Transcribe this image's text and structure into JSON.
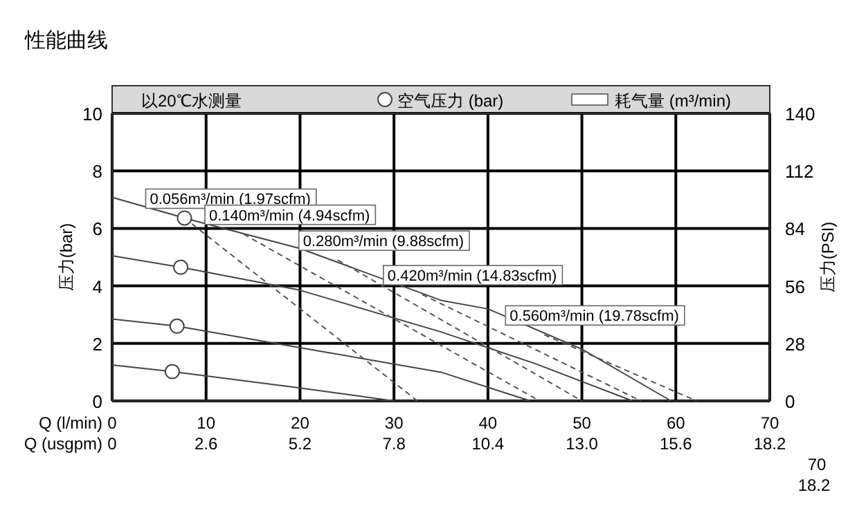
{
  "chart_data": {
    "type": "line",
    "title": "性能曲线",
    "ylabel": "压力(bar)",
    "y2label": "压力(PSI)",
    "xlabel": "Q (l/min)",
    "x2label": "Q (usgpm)",
    "xlim": [
      0,
      70
    ],
    "xticks": [
      0,
      10,
      20,
      30,
      40,
      50,
      60,
      70
    ],
    "x2lim": [
      0,
      18.2
    ],
    "x2ticks": [
      0,
      2.6,
      5.2,
      7.8,
      10.4,
      {
        "value": 13,
        "label": "13.0"
      },
      15.6,
      18.2
    ],
    "ylim": [
      0,
      10
    ],
    "yticks": [
      0,
      2,
      4,
      6,
      8,
      10
    ],
    "y2lim": [
      0,
      140
    ],
    "y2ticks": [
      0,
      28,
      56,
      84,
      112,
      140
    ],
    "grid": true,
    "legend": "top",
    "series": [
      {
        "color": "#444444",
        "x": [
          0,
          7.7,
          20,
          35,
          40,
          50,
          59.5
        ],
        "values": [
          7.08,
          6.36,
          5.3,
          3.5,
          3.2,
          1.8,
          0
        ]
      },
      {
        "color": "#444444",
        "x": [
          0,
          7.3,
          20,
          35,
          45,
          55.4
        ],
        "values": [
          5.05,
          4.65,
          3.85,
          2.4,
          1.3,
          0
        ]
      },
      {
        "color": "#444444",
        "x": [
          0,
          6.9,
          20,
          35,
          44.5
        ],
        "values": [
          2.85,
          2.6,
          1.85,
          1.0,
          0
        ]
      },
      {
        "color": "#444444",
        "x": [
          0,
          6.4,
          20,
          30
        ],
        "values": [
          1.25,
          1.02,
          0.45,
          0
        ]
      },
      {
        "line_style": "dashed",
        "color": "#555555",
        "x": [
          7.7,
          32.5
        ],
        "values": [
          6.36,
          0
        ]
      },
      {
        "line_style": "dashed",
        "color": "#555555",
        "x": [
          14,
          45.5
        ],
        "values": [
          5.8,
          0
        ]
      },
      {
        "line_style": "dashed",
        "color": "#555555",
        "x": [
          24,
          50
        ],
        "values": [
          4.9,
          0
        ]
      },
      {
        "line_style": "dashed",
        "color": "#555555",
        "x": [
          33,
          56.3
        ],
        "values": [
          3.7,
          0
        ]
      },
      {
        "line_style": "dashed",
        "color": "#555555",
        "x": [
          46,
          62.2
        ],
        "values": [
          2.3,
          0
        ]
      },
      {
        "type": "scatter",
        "name": "空气压力 (bar)",
        "marker": "circle",
        "color": "#444444",
        "x": [
          7.7,
          7.3,
          6.9,
          6.4
        ],
        "values": [
          6.36,
          4.65,
          2.6,
          1.02
        ]
      }
    ],
    "annotations": [
      "以20℃水测量",
      "耗气量 (m³/min)",
      "70",
      "18.2",
      {
        "text": "0.056m³/min (1.97scfm)",
        "x": 7.7,
        "y": 6.36
      },
      {
        "text": "0.140m³/min (4.94scfm)",
        "x": 14,
        "y": 5.8
      },
      {
        "text": "0.280m³/min (9.88scfm)",
        "x": 24,
        "y": 4.9
      },
      {
        "text": "0.420m³/min (14.83scfm)",
        "x": 33,
        "y": 3.7
      },
      {
        "text": "0.560m³/min (19.78scfm)",
        "x": 46,
        "y": 2.3
      }
    ]
  }
}
